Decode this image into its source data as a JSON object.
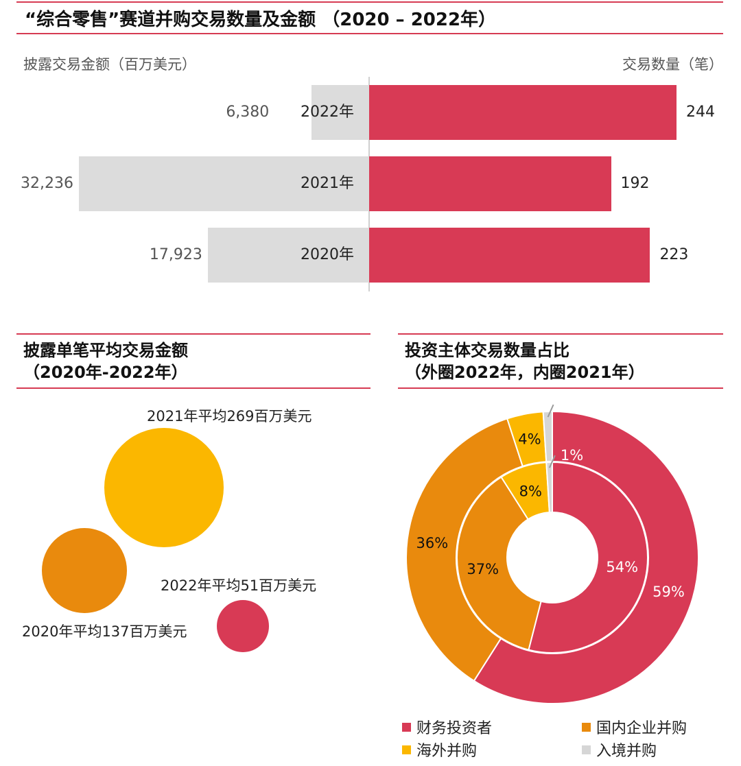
{
  "top": {
    "title": "“综合零售”赛道并购交易数量及金额 （2020 – 2022年）",
    "left_label": "披露交易金额（百万美元）",
    "right_label": "交易数量（笔）"
  },
  "colors": {
    "red": "#d83a55",
    "orange": "#e98a0d",
    "yellow": "#fbb700",
    "grey": "#dcdcdc",
    "rule": "#d63a52"
  },
  "bubbles": {
    "title_line1": "披露单笔平均交易金额",
    "title_line2": "（2020年-2022年）"
  },
  "donut": {
    "title_line1": "投资主体交易数量占比",
    "title_line2": "（外圈2022年，内圈2021年）"
  },
  "chart_data": [
    {
      "type": "bar",
      "title": "“综合零售”赛道并购交易数量及金额 （2020 – 2022年）",
      "categories": [
        "2022年",
        "2021年",
        "2020年"
      ],
      "series": [
        {
          "name": "披露交易金额（百万美元）",
          "values": [
            6380,
            32236,
            17923
          ],
          "labels": [
            "6,380",
            "32,236",
            "17,923"
          ]
        },
        {
          "name": "交易数量（笔）",
          "values": [
            244,
            192,
            223
          ],
          "labels": [
            "244",
            "192",
            "223"
          ]
        }
      ]
    },
    {
      "type": "scatter",
      "title": "披露单笔平均交易金额（2020年-2022年）",
      "points": [
        {
          "label": "2021年平均269百万美元",
          "value": 269,
          "color": "#fbb700"
        },
        {
          "label": "2020年平均137百万美元",
          "value": 137,
          "color": "#e98a0d"
        },
        {
          "label": "2022年平均51百万美元",
          "value": 51,
          "color": "#d83a55"
        }
      ]
    },
    {
      "type": "pie",
      "title": "投资主体交易数量占比（外圈2022年，内圈2021年）",
      "categories": [
        "财务投资者",
        "国内企业并购",
        "海外并购",
        "入境并购"
      ],
      "series": [
        {
          "name": "外圈2022年",
          "values": [
            59,
            36,
            4,
            1
          ],
          "labels": [
            "59%",
            "36%",
            "4%",
            "1%"
          ]
        },
        {
          "name": "内圈2021年",
          "values": [
            54,
            37,
            8,
            1
          ],
          "labels": [
            "54%",
            "37%",
            "8%",
            "1%"
          ]
        }
      ],
      "legend": "bottom"
    }
  ]
}
